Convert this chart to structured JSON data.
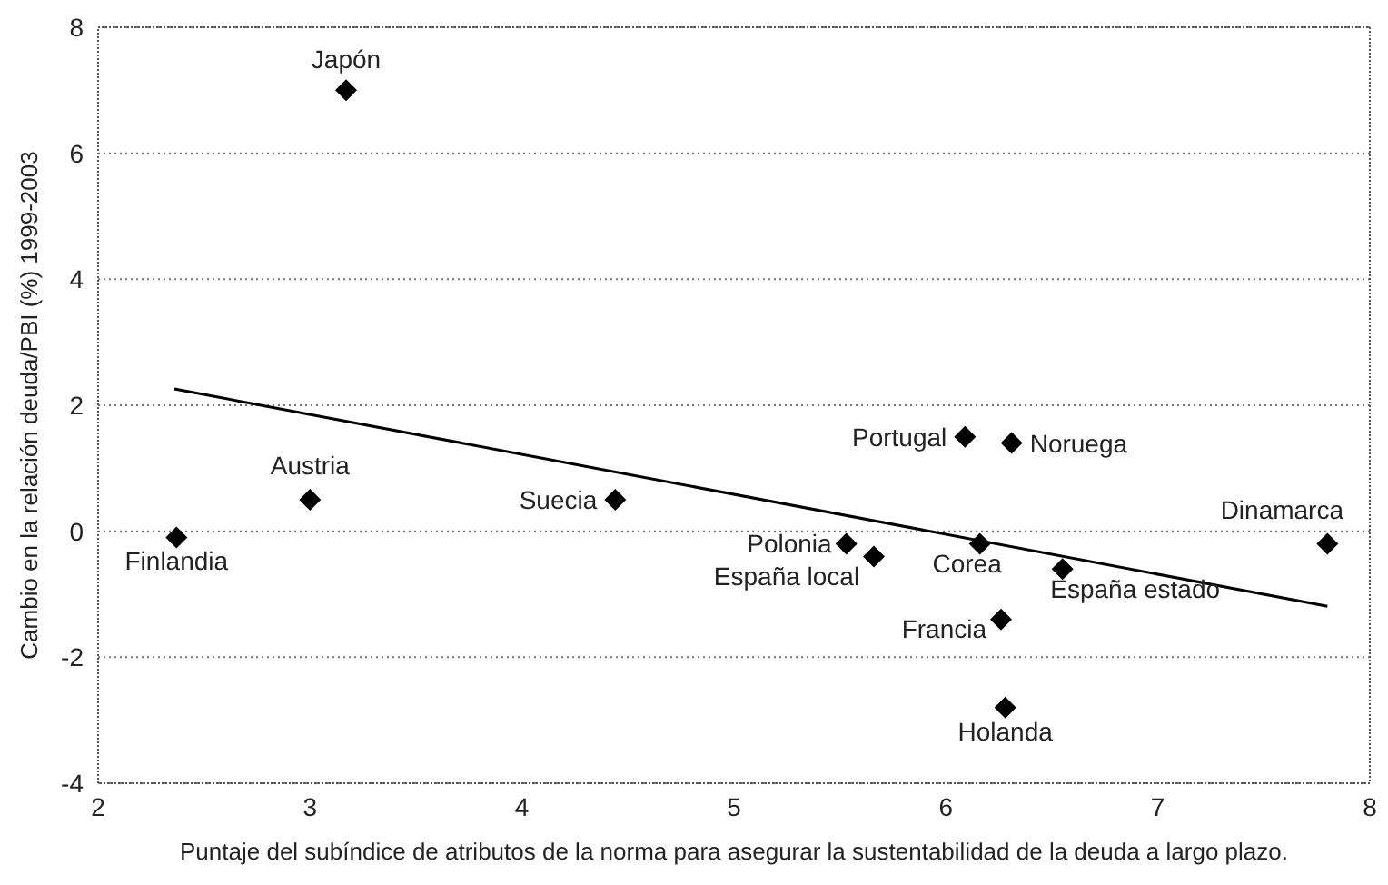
{
  "chart_data": {
    "type": "scatter",
    "xlabel": "Puntaje del subíndice de atributos de la norma para asegurar la sustentabilidad de la deuda a largo plazo.",
    "ylabel": "Cambio en la relación deuda/PBI (%) 1999-2003",
    "x": [
      2.37,
      3.0,
      3.17,
      4.44,
      5.53,
      5.66,
      6.09,
      6.31,
      6.16,
      6.55,
      6.26,
      6.28,
      7.8
    ],
    "series": [
      {
        "color": "#000000",
        "values": [
          -0.1,
          0.5,
          7.0,
          0.5,
          -0.2,
          -0.4,
          1.5,
          1.4,
          -0.2,
          -0.6,
          -1.4,
          -2.8,
          -0.2
        ]
      },
      {
        "type": "line",
        "color": "#000000",
        "x": [
          2.36,
          7.8
        ],
        "values": [
          2.26,
          -1.19
        ],
        "marker": "none"
      }
    ],
    "annotations": [
      {
        "text": "Finlandia",
        "x": 2.37,
        "y": -0.1
      },
      {
        "text": "Austria",
        "x": 3.0,
        "y": 0.5
      },
      {
        "text": "Japón",
        "x": 3.17,
        "y": 7.0
      },
      {
        "text": "Suecia",
        "x": 4.44,
        "y": 0.5
      },
      {
        "text": "Polonia",
        "x": 5.53,
        "y": -0.2
      },
      {
        "text": "España local",
        "x": 5.66,
        "y": -0.4
      },
      {
        "text": "Portugal",
        "x": 6.09,
        "y": 1.5
      },
      {
        "text": "Noruega",
        "x": 6.31,
        "y": 1.4
      },
      {
        "text": "Corea",
        "x": 6.16,
        "y": -0.2
      },
      {
        "text": "España estado",
        "x": 6.55,
        "y": -0.6
      },
      {
        "text": "Francia",
        "x": 6.26,
        "y": -1.4
      },
      {
        "text": "Holanda",
        "x": 6.28,
        "y": -2.8
      },
      {
        "text": "Dinamarca",
        "x": 7.8,
        "y": -0.2
      }
    ],
    "xlim": [
      2,
      8
    ],
    "xticks": [
      2,
      3,
      4,
      5,
      6,
      7,
      8
    ],
    "ylim": [
      -4,
      8
    ],
    "yticks": [
      -4,
      -2,
      0,
      2,
      4,
      6,
      8
    ],
    "grid": "y",
    "marker": "diamond"
  }
}
